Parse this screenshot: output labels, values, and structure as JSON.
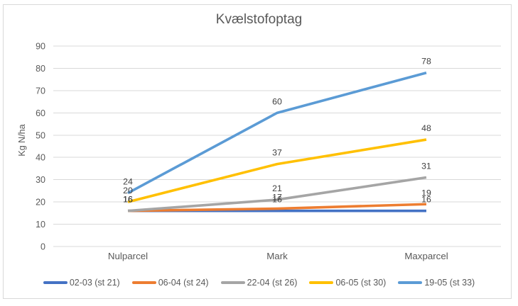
{
  "chart_data": {
    "type": "line",
    "title": "Kvælstofoptag",
    "ylabel": "Kg N/ha",
    "xlabel": "",
    "categories": [
      "Nulparcel",
      "Mark",
      "Maxparcel"
    ],
    "series": [
      {
        "name": "02-03 (st 21)",
        "color": "#4472C4",
        "values": [
          16,
          16,
          16
        ]
      },
      {
        "name": "06-04 (st 24)",
        "color": "#ED7D31",
        "values": [
          16,
          17,
          19
        ]
      },
      {
        "name": "22-04 (st 26)",
        "color": "#A5A5A5",
        "values": [
          16,
          21,
          31
        ]
      },
      {
        "name": "06-05 (st 30)",
        "color": "#FFC000",
        "values": [
          20,
          37,
          48
        ]
      },
      {
        "name": "19-05 (st 33)",
        "color": "#5B9BD5",
        "values": [
          24,
          60,
          78
        ]
      }
    ],
    "y_ticks": [
      0,
      10,
      20,
      30,
      40,
      50,
      60,
      70,
      80,
      90
    ],
    "ylim": [
      0,
      90
    ],
    "grid": true,
    "legend_position": "bottom",
    "data_labels": "above"
  },
  "style_colors": {
    "axis_text": "#595959",
    "data_label_text": "#404040",
    "gridline": "#D9D9D9",
    "frame_border": "#D9D9D9",
    "background": "#FFFFFF"
  }
}
